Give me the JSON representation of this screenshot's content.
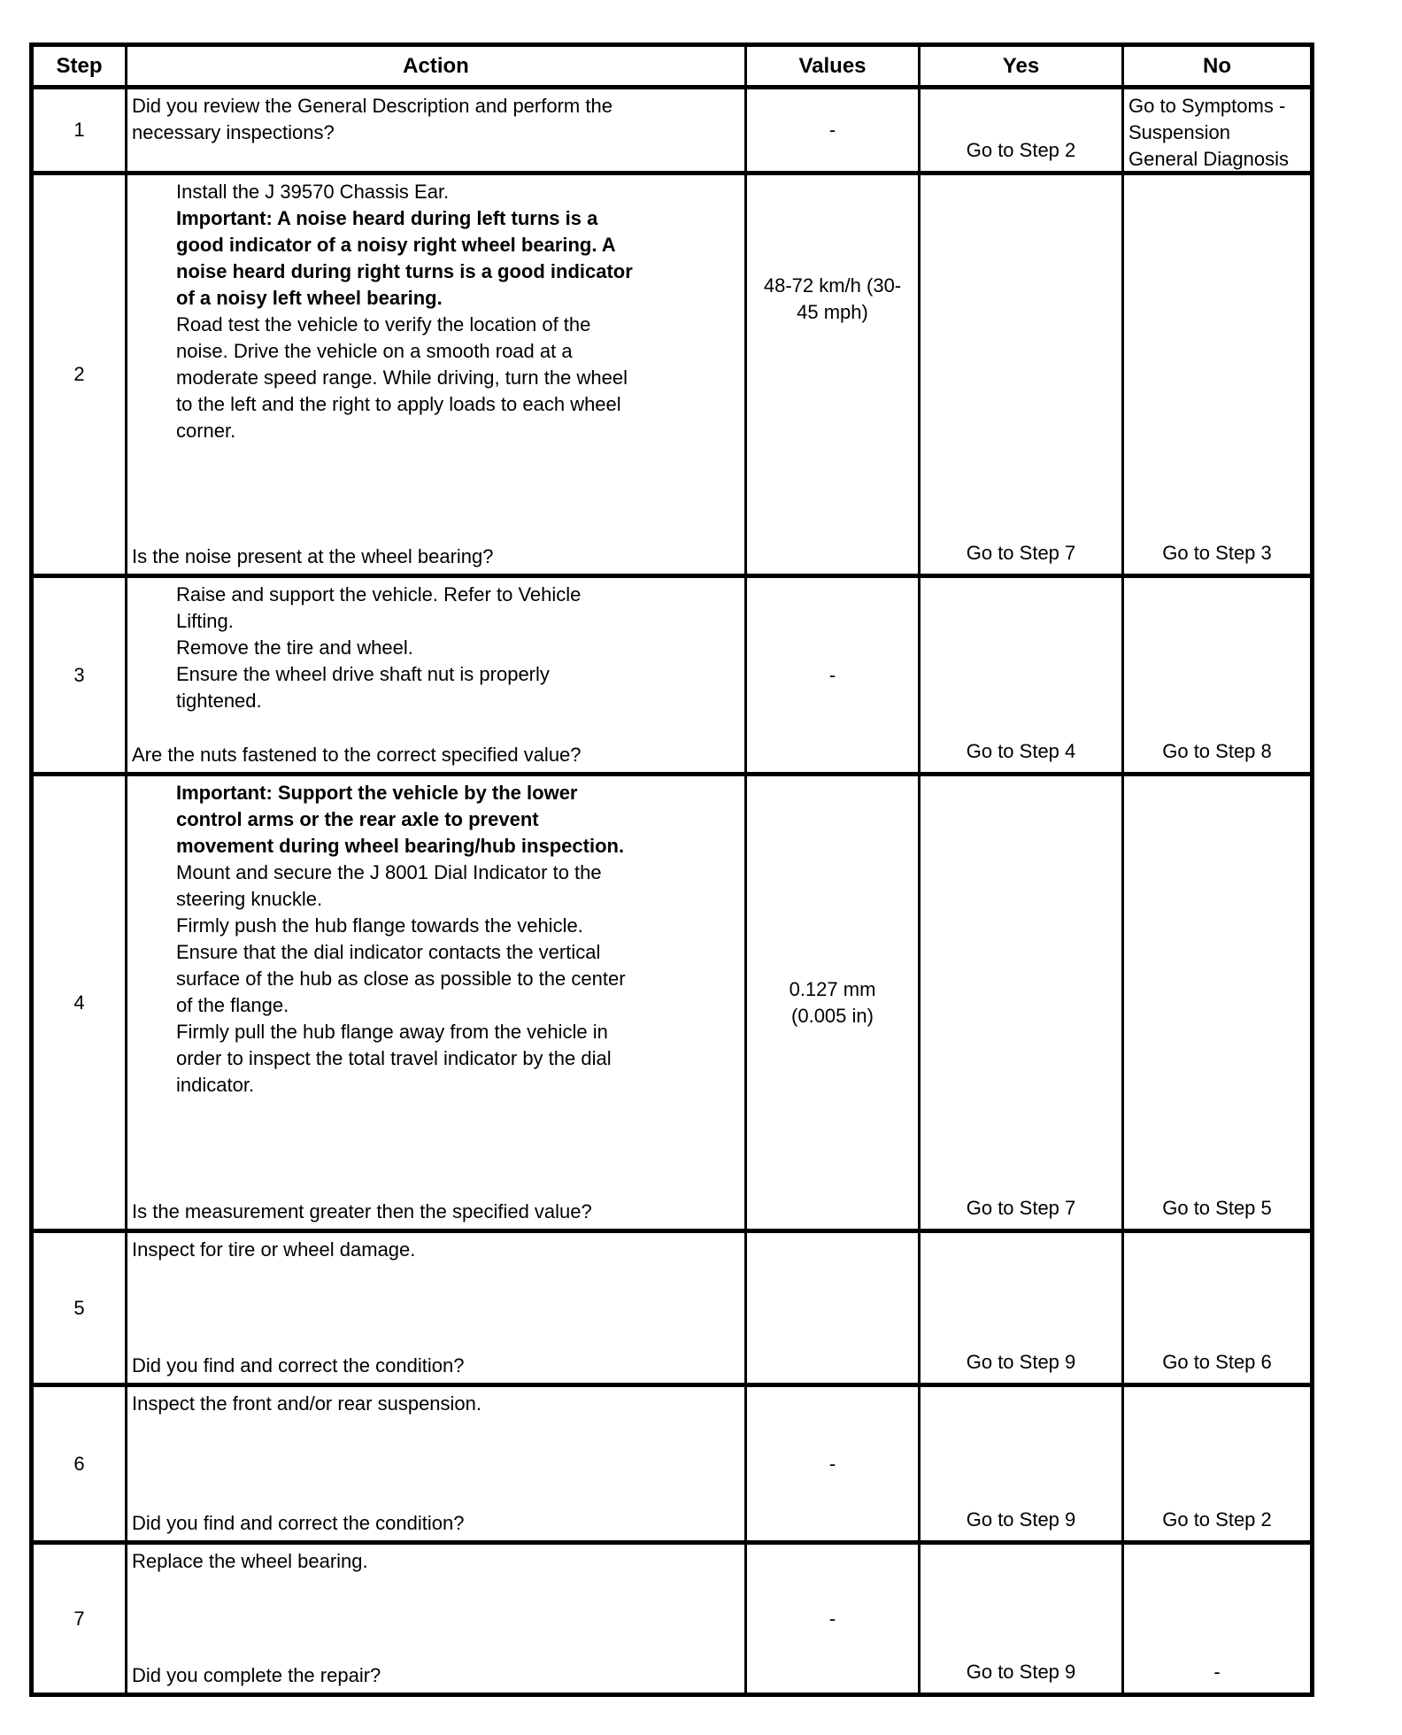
{
  "header": {
    "step": "Step",
    "action": "Action",
    "values": "Values",
    "yes": "Yes",
    "no": "No"
  },
  "rows": [
    {
      "step": "1",
      "body": [
        "Did you review the General Description and perform the\nnecessary inspections?"
      ],
      "question": "",
      "values": "-",
      "yes": "Go to Step 2",
      "no": "Go to Symptoms -\nSuspension\nGeneral Diagnosis"
    },
    {
      "step": "2",
      "body": [
        "Install the J 39570 Chassis Ear.",
        "Important: A noise heard during left turns is a\ngood indicator of a noisy right wheel bearing. A\nnoise heard during right turns is a good indicator\nof a noisy left wheel bearing.",
        "Road test the vehicle to verify the location of the\nnoise. Drive the vehicle on a smooth road at a\nmoderate speed range. While driving, turn the wheel\nto the left and the right to apply loads to each wheel\ncorner."
      ],
      "question": "Is the noise present at the wheel bearing?",
      "values": "48-72 km/h (30-\n45 mph)",
      "yes": "Go to Step 7",
      "no": "Go to Step 3"
    },
    {
      "step": "3",
      "body": [
        "Raise and support the vehicle. Refer to Vehicle\nLifting.\nRemove the tire and wheel.\nEnsure the wheel drive shaft nut is properly\ntightened."
      ],
      "question": "Are the nuts fastened to the correct specified value?",
      "values": "-",
      "yes": "Go to Step 4",
      "no": "Go to Step 8"
    },
    {
      "step": "4",
      "body": [
        "Important: Support the vehicle by the lower\ncontrol arms or the rear axle to prevent\nmovement during wheel bearing/hub inspection.",
        "Mount and secure the J 8001 Dial Indicator to the\nsteering knuckle.\nFirmly push the hub flange towards the vehicle.\nEnsure that the dial indicator contacts the vertical\nsurface of the hub as close as possible to the center\nof the flange.\nFirmly pull the hub flange away from the vehicle in\norder to inspect the total travel indicator by the dial\nindicator."
      ],
      "question": "Is the measurement greater then the specified value?",
      "values": "0.127 mm\n(0.005 in)",
      "yes": "Go to Step 7",
      "no": "Go to Step 5"
    },
    {
      "step": "5",
      "body": [
        "Inspect for tire or wheel damage."
      ],
      "question": "Did you find and correct the condition?",
      "values": "",
      "yes": "Go to Step 9",
      "no": "Go to Step 6"
    },
    {
      "step": "6",
      "body": [
        "Inspect the front and/or rear suspension."
      ],
      "question": "Did you find and correct the condition?",
      "values": "-",
      "yes": "Go to Step 9",
      "no": "Go to Step 2"
    },
    {
      "step": "7",
      "body": [
        "Replace the wheel bearing."
      ],
      "question": "Did you complete the repair?",
      "values": "-",
      "yes": "Go to Step 9",
      "no": "-"
    }
  ]
}
